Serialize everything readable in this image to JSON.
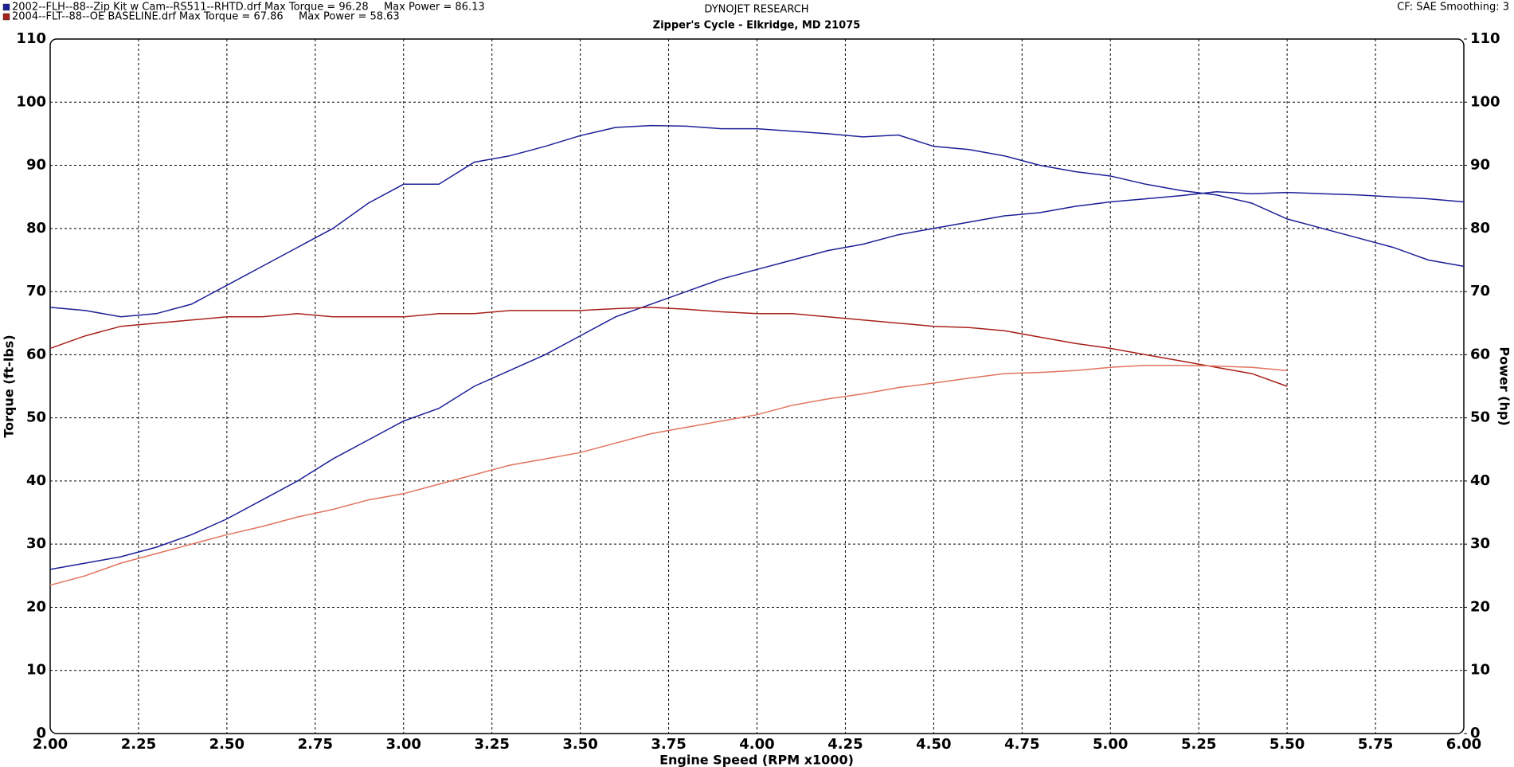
{
  "chart_data": {
    "type": "line",
    "title": "DYNOJET RESEARCH",
    "subtitle": "Zipper's Cycle - Elkridge, MD 21075",
    "corner_note": "CF: SAE  Smoothing: 3",
    "x_label": "Engine Speed (RPM x1000)",
    "y_label": "Torque (ft-lbs)",
    "y2_label": "Power (hp)",
    "grid": true,
    "xlim": [
      2,
      6
    ],
    "xticks": [
      {
        "value": 2,
        "label": "2.00"
      },
      {
        "value": 2.25,
        "label": "2.25"
      },
      {
        "value": 2.5,
        "label": "2.50"
      },
      {
        "value": 2.75,
        "label": "2.75"
      },
      {
        "value": 3,
        "label": "3.00"
      },
      {
        "value": 3.25,
        "label": "3.25"
      },
      {
        "value": 3.5,
        "label": "3.50"
      },
      {
        "value": 3.75,
        "label": "3.75"
      },
      {
        "value": 4,
        "label": "4.00"
      },
      {
        "value": 4.25,
        "label": "4.25"
      },
      {
        "value": 4.5,
        "label": "4.50"
      },
      {
        "value": 4.75,
        "label": "4.75"
      },
      {
        "value": 5,
        "label": "5.00"
      },
      {
        "value": 5.25,
        "label": "5.25"
      },
      {
        "value": 5.5,
        "label": "5.50"
      },
      {
        "value": 5.75,
        "label": "5.75"
      },
      {
        "value": 6,
        "label": "6.00"
      }
    ],
    "ylim": [
      0,
      110
    ],
    "yticks": [
      0,
      10,
      20,
      30,
      40,
      50,
      60,
      70,
      80,
      90,
      100,
      110
    ],
    "y2lim": [
      0,
      110
    ],
    "y2ticks": [
      0,
      10,
      20,
      30,
      40,
      50,
      60,
      70,
      80,
      90,
      100,
      110
    ],
    "x": [
      2.0,
      2.1,
      2.2,
      2.3,
      2.4,
      2.5,
      2.6,
      2.7,
      2.8,
      2.9,
      3.0,
      3.1,
      3.2,
      3.3,
      3.4,
      3.5,
      3.6,
      3.7,
      3.8,
      3.9,
      4.0,
      4.1,
      4.2,
      4.3,
      4.4,
      4.5,
      4.6,
      4.7,
      4.8,
      4.9,
      5.0,
      5.1,
      5.2,
      5.3,
      5.4,
      5.5,
      5.6,
      5.7,
      5.8,
      5.9,
      6.0
    ],
    "series": [
      {
        "name": "2002--FLH--88--Zip Kit w Cam--RS511--RHTD.drf",
        "legend_notes": [
          "Max Torque = 96.28",
          "Max Power = 86.13"
        ],
        "color": "#1c1f96",
        "values": [
          67.5,
          67,
          66,
          66.5,
          68,
          71,
          74,
          77,
          80,
          84,
          87,
          87,
          90.5,
          91.5,
          93,
          94.7,
          96,
          96.3,
          96.2,
          95.8,
          95.8,
          95.4,
          95,
          94.5,
          94.8,
          93,
          92.5,
          91.5,
          90,
          89,
          88.3,
          87,
          86,
          85.3,
          84,
          81.5,
          80,
          78.5,
          77,
          75,
          74
        ]
      },
      {
        "axis": "y2",
        "color": "#1c1f96",
        "values": [
          26,
          27,
          28,
          29.5,
          31.5,
          34,
          37,
          40,
          43.5,
          46.5,
          49.5,
          51.5,
          55,
          57.5,
          60,
          63,
          66,
          68,
          70,
          72,
          73.5,
          75,
          76.5,
          77.5,
          79,
          80,
          81,
          82,
          82.5,
          83.5,
          84.2,
          84.7,
          85.2,
          85.8,
          85.5,
          85.7,
          85.5,
          85.3,
          85,
          84.7,
          84.2
        ]
      },
      {
        "name": "2004--FLT--88--OE BASELINE.drf",
        "legend_notes": [
          "Max Torque = 67.86",
          "Max Power = 58.63"
        ],
        "color": "#a8201a",
        "values": [
          61,
          63,
          64.5,
          65,
          65.5,
          66,
          66,
          66.5,
          66,
          66,
          66,
          66.5,
          66.5,
          67,
          67,
          67,
          67.3,
          67.5,
          67.2,
          66.8,
          66.5,
          66.5,
          66,
          65.5,
          65,
          64.5,
          64.3,
          63.8,
          62.8,
          61.8,
          61,
          60,
          59,
          58,
          57,
          55,
          null,
          null,
          null,
          null,
          null
        ]
      },
      {
        "axis": "y2",
        "color": "#e2735e",
        "values": [
          23.5,
          25,
          27,
          28.5,
          30,
          31.5,
          32.8,
          34.3,
          35.5,
          37,
          38,
          39.5,
          41,
          42.5,
          43.5,
          44.5,
          46,
          47.5,
          48.5,
          49.5,
          50.5,
          52,
          53,
          53.8,
          54.8,
          55.5,
          56.3,
          57,
          57.2,
          57.5,
          58,
          58.3,
          58.3,
          58.2,
          58,
          57.5,
          null,
          null,
          null,
          null,
          null
        ]
      }
    ]
  }
}
